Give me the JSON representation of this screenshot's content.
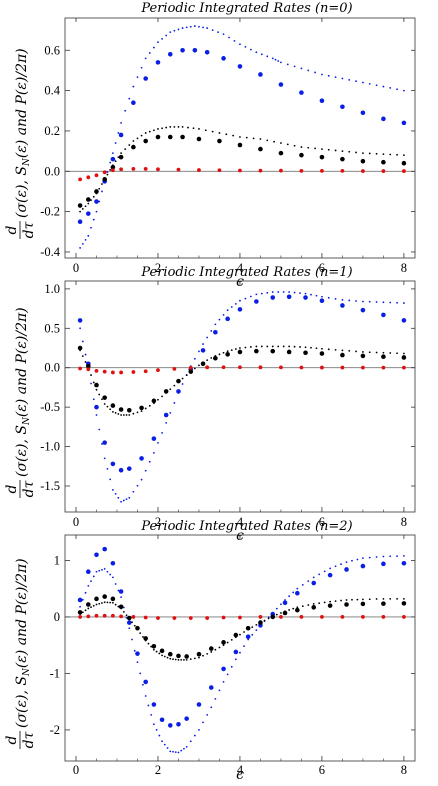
{
  "colors": {
    "blue": "#0a1ee6",
    "black": "#000000",
    "red": "#e01010",
    "frame": "#333333"
  },
  "ylabel": "d/dτ (σ(ε), S_N(ε) and P(ε)/2π)",
  "ylabel_parts": {
    "frac_num": "d",
    "frac_den": "dτ",
    "body": "(σ(ε), S",
    "sub": "N",
    "tail": "(ε) and P(ε)/2π)"
  },
  "chart_data": [
    {
      "type": "scatter",
      "title": "Periodic Integrated Rates (n=0)",
      "xlabel": "ϵ",
      "xlim": [
        0,
        8.1
      ],
      "ylim": [
        -0.43,
        0.76
      ],
      "xticks": [
        0,
        2,
        4,
        6,
        8
      ],
      "yticks": [
        -0.4,
        -0.2,
        0.0,
        0.2,
        0.4,
        0.6
      ],
      "ytick_labels": [
        "-0.4",
        "-0.2",
        "0.0",
        "0.2",
        "0.4",
        "0.6"
      ],
      "series": [
        {
          "style": "blue-big",
          "x": [
            0.1,
            0.3,
            0.5,
            0.7,
            0.9,
            1.1,
            1.4,
            1.7,
            2.0,
            2.3,
            2.6,
            2.9,
            3.2,
            3.6,
            4.0,
            4.5,
            5.0,
            5.5,
            6.0,
            6.5,
            7.0,
            7.5,
            8.0
          ],
          "y": [
            -0.25,
            -0.21,
            -0.15,
            -0.05,
            0.06,
            0.18,
            0.34,
            0.46,
            0.54,
            0.58,
            0.6,
            0.6,
            0.59,
            0.56,
            0.52,
            0.48,
            0.43,
            0.39,
            0.35,
            0.32,
            0.29,
            0.26,
            0.24
          ]
        },
        {
          "style": "blue-small",
          "x": [
            0.1,
            0.3,
            0.5,
            0.7,
            0.9,
            1.1,
            1.4,
            1.7,
            2.0,
            2.3,
            2.6,
            2.9,
            3.2,
            3.6,
            4.0,
            4.4,
            4.8,
            5.0,
            5.5,
            6.0,
            6.5,
            7.0,
            7.5,
            8.0
          ],
          "y": [
            -0.38,
            -0.32,
            -0.2,
            -0.05,
            0.09,
            0.24,
            0.42,
            0.56,
            0.64,
            0.69,
            0.71,
            0.72,
            0.71,
            0.68,
            0.63,
            0.59,
            0.56,
            0.54,
            0.51,
            0.48,
            0.46,
            0.44,
            0.42,
            0.4
          ]
        },
        {
          "style": "black-big",
          "x": [
            0.1,
            0.3,
            0.5,
            0.7,
            0.9,
            1.1,
            1.4,
            1.7,
            2.0,
            2.3,
            2.6,
            3.0,
            3.5,
            4.0,
            4.5,
            5.0,
            5.5,
            6.0,
            6.5,
            7.0,
            7.5,
            8.0
          ],
          "y": [
            -0.17,
            -0.14,
            -0.1,
            -0.04,
            0.02,
            0.07,
            0.12,
            0.15,
            0.17,
            0.17,
            0.17,
            0.16,
            0.15,
            0.13,
            0.11,
            0.09,
            0.08,
            0.07,
            0.06,
            0.05,
            0.045,
            0.04
          ]
        },
        {
          "style": "black-small",
          "x": [
            0.1,
            0.3,
            0.5,
            0.7,
            0.9,
            1.1,
            1.4,
            1.7,
            2.0,
            2.3,
            2.6,
            3.0,
            3.5,
            4.0,
            4.5,
            5.0,
            5.5,
            6.0,
            6.5,
            7.0,
            7.5,
            8.0
          ],
          "y": [
            -0.2,
            -0.16,
            -0.11,
            -0.04,
            0.03,
            0.09,
            0.15,
            0.19,
            0.21,
            0.22,
            0.22,
            0.21,
            0.19,
            0.17,
            0.16,
            0.14,
            0.12,
            0.11,
            0.1,
            0.09,
            0.085,
            0.08
          ]
        },
        {
          "style": "red",
          "x": [
            0.1,
            0.3,
            0.5,
            0.7,
            0.9,
            1.1,
            1.4,
            1.7,
            2.0,
            2.5,
            3.0,
            3.5,
            4.0,
            4.5,
            5.0,
            5.5,
            6.0,
            6.5,
            7.0,
            7.5,
            8.0
          ],
          "y": [
            -0.04,
            -0.03,
            -0.02,
            -0.005,
            0.005,
            0.01,
            0.012,
            0.012,
            0.01,
            0.008,
            0.006,
            0.005,
            0.004,
            0.003,
            0.003,
            0.002,
            0.002,
            0.002,
            0.001,
            0.001,
            0.001
          ]
        }
      ]
    },
    {
      "type": "scatter",
      "title": "Periodic Integrated Rates (n=1)",
      "xlabel": "ϵ",
      "xlim": [
        0,
        8.1
      ],
      "ylim": [
        -1.83,
        1.1
      ],
      "xticks": [
        0,
        2,
        4,
        6,
        8
      ],
      "yticks": [
        -1.5,
        -1.0,
        -0.5,
        0.0,
        0.5,
        1.0
      ],
      "ytick_labels": [
        "-1.5",
        "-1.0",
        "-0.5",
        "0.0",
        "0.5",
        "1.0"
      ],
      "series": [
        {
          "style": "blue-big",
          "x": [
            0.1,
            0.3,
            0.5,
            0.7,
            0.9,
            1.1,
            1.3,
            1.6,
            1.9,
            2.2,
            2.5,
            2.8,
            3.1,
            3.4,
            3.7,
            4.0,
            4.4,
            4.8,
            5.2,
            5.6,
            6.0,
            6.5,
            7.0,
            7.5,
            8.0
          ],
          "y": [
            0.6,
            0.05,
            -0.5,
            -0.95,
            -1.22,
            -1.3,
            -1.28,
            -1.15,
            -0.9,
            -0.6,
            -0.3,
            -0.02,
            0.22,
            0.45,
            0.62,
            0.74,
            0.84,
            0.89,
            0.9,
            0.89,
            0.85,
            0.79,
            0.73,
            0.67,
            0.6
          ]
        },
        {
          "style": "blue-small",
          "x": [
            0.1,
            0.3,
            0.5,
            0.7,
            0.9,
            1.1,
            1.3,
            1.6,
            1.9,
            2.2,
            2.5,
            2.8,
            3.1,
            3.4,
            3.7,
            4.0,
            4.4,
            4.8,
            5.2,
            5.6,
            6.0,
            6.5,
            7.0,
            7.5,
            8.0
          ],
          "y": [
            0.5,
            0.0,
            -0.6,
            -1.15,
            -1.55,
            -1.7,
            -1.65,
            -1.42,
            -1.08,
            -0.7,
            -0.32,
            0.02,
            0.3,
            0.55,
            0.73,
            0.85,
            0.93,
            0.96,
            0.96,
            0.94,
            0.9,
            0.86,
            0.84,
            0.83,
            0.82
          ]
        },
        {
          "style": "black-big",
          "x": [
            0.1,
            0.3,
            0.5,
            0.7,
            0.9,
            1.1,
            1.3,
            1.6,
            1.9,
            2.2,
            2.5,
            2.8,
            3.1,
            3.4,
            3.7,
            4.0,
            4.4,
            4.8,
            5.2,
            5.6,
            6.0,
            6.5,
            7.0,
            7.5,
            8.0
          ],
          "y": [
            0.25,
            0.02,
            -0.22,
            -0.38,
            -0.48,
            -0.53,
            -0.54,
            -0.51,
            -0.42,
            -0.3,
            -0.17,
            -0.05,
            0.05,
            0.12,
            0.17,
            0.2,
            0.21,
            0.21,
            0.2,
            0.19,
            0.18,
            0.16,
            0.15,
            0.14,
            0.13
          ]
        },
        {
          "style": "black-small",
          "x": [
            0.1,
            0.3,
            0.5,
            0.7,
            0.9,
            1.1,
            1.3,
            1.6,
            1.9,
            2.2,
            2.5,
            2.8,
            3.1,
            3.4,
            3.7,
            4.0,
            4.4,
            4.8,
            5.2,
            5.6,
            6.0,
            6.5,
            7.0,
            7.5,
            8.0
          ],
          "y": [
            0.22,
            0.0,
            -0.28,
            -0.46,
            -0.56,
            -0.6,
            -0.6,
            -0.55,
            -0.45,
            -0.32,
            -0.18,
            -0.05,
            0.07,
            0.15,
            0.21,
            0.25,
            0.27,
            0.27,
            0.27,
            0.26,
            0.24,
            0.22,
            0.2,
            0.19,
            0.18
          ]
        },
        {
          "style": "red",
          "x": [
            0.1,
            0.3,
            0.5,
            0.7,
            0.9,
            1.1,
            1.4,
            1.7,
            2.0,
            2.4,
            2.8,
            3.2,
            3.6,
            4.0,
            4.5,
            5.0,
            5.5,
            6.0,
            6.5,
            7.0,
            7.5,
            8.0
          ],
          "y": [
            -0.01,
            -0.02,
            -0.04,
            -0.05,
            -0.06,
            -0.06,
            -0.055,
            -0.045,
            -0.03,
            -0.015,
            0.0,
            0.005,
            0.006,
            0.006,
            0.005,
            0.004,
            0.003,
            0.002,
            0.002,
            0.001,
            0.001,
            0.001
          ]
        }
      ]
    },
    {
      "type": "scatter",
      "title": "Periodic Integrated Rates (n=2)",
      "xlabel": "ϵ",
      "xlim": [
        0,
        8.1
      ],
      "ylim": [
        -2.55,
        1.45
      ],
      "xticks": [
        0,
        2,
        4,
        6,
        8
      ],
      "yticks": [
        -2,
        -1,
        0,
        1
      ],
      "ytick_labels": [
        "-2",
        "-1",
        "0",
        "1"
      ],
      "series": [
        {
          "style": "blue-big",
          "x": [
            0.1,
            0.3,
            0.5,
            0.7,
            0.9,
            1.1,
            1.3,
            1.5,
            1.7,
            1.9,
            2.1,
            2.3,
            2.5,
            2.7,
            3.0,
            3.3,
            3.6,
            3.9,
            4.2,
            4.5,
            4.8,
            5.1,
            5.4,
            5.8,
            6.2,
            6.6,
            7.0,
            7.5,
            8.0
          ],
          "y": [
            0.3,
            0.8,
            1.1,
            1.2,
            0.95,
            0.45,
            -0.1,
            -0.65,
            -1.15,
            -1.55,
            -1.82,
            -1.92,
            -1.9,
            -1.8,
            -1.55,
            -1.25,
            -0.92,
            -0.62,
            -0.35,
            -0.15,
            0.05,
            0.25,
            0.42,
            0.6,
            0.74,
            0.84,
            0.9,
            0.94,
            0.95
          ]
        },
        {
          "style": "blue-small",
          "x": [
            0.1,
            0.3,
            0.5,
            0.7,
            0.9,
            1.1,
            1.3,
            1.5,
            1.7,
            1.9,
            2.1,
            2.3,
            2.5,
            2.7,
            3.0,
            3.3,
            3.6,
            3.9,
            4.2,
            4.5,
            4.8,
            5.1,
            5.4,
            5.8,
            6.2,
            6.6,
            7.0,
            7.5,
            8.0
          ],
          "y": [
            0.18,
            0.55,
            0.8,
            0.85,
            0.7,
            0.35,
            -0.2,
            -0.8,
            -1.4,
            -1.9,
            -2.2,
            -2.38,
            -2.4,
            -2.3,
            -2.0,
            -1.6,
            -1.15,
            -0.75,
            -0.4,
            -0.15,
            0.07,
            0.3,
            0.5,
            0.7,
            0.86,
            0.97,
            1.04,
            1.07,
            1.08
          ]
        },
        {
          "style": "black-big",
          "x": [
            0.1,
            0.3,
            0.5,
            0.7,
            0.9,
            1.1,
            1.3,
            1.5,
            1.7,
            1.9,
            2.1,
            2.3,
            2.5,
            2.7,
            3.0,
            3.3,
            3.6,
            3.9,
            4.2,
            4.5,
            4.8,
            5.1,
            5.4,
            5.8,
            6.2,
            6.6,
            7.0,
            7.5,
            8.0
          ],
          "y": [
            0.08,
            0.22,
            0.32,
            0.36,
            0.32,
            0.18,
            -0.02,
            -0.2,
            -0.38,
            -0.52,
            -0.6,
            -0.66,
            -0.69,
            -0.7,
            -0.66,
            -0.56,
            -0.45,
            -0.32,
            -0.2,
            -0.1,
            0.0,
            0.07,
            0.12,
            0.17,
            0.2,
            0.22,
            0.23,
            0.235,
            0.24
          ]
        },
        {
          "style": "black-small",
          "x": [
            0.1,
            0.3,
            0.5,
            0.7,
            0.9,
            1.1,
            1.3,
            1.5,
            1.7,
            1.9,
            2.1,
            2.3,
            2.5,
            2.7,
            3.0,
            3.3,
            3.6,
            3.9,
            4.2,
            4.5,
            4.8,
            5.1,
            5.4,
            5.8,
            6.2,
            6.6,
            7.0,
            7.5,
            8.0
          ],
          "y": [
            0.05,
            0.15,
            0.22,
            0.26,
            0.25,
            0.15,
            -0.03,
            -0.22,
            -0.42,
            -0.58,
            -0.68,
            -0.74,
            -0.76,
            -0.76,
            -0.72,
            -0.62,
            -0.5,
            -0.36,
            -0.22,
            -0.1,
            0.01,
            0.1,
            0.17,
            0.23,
            0.27,
            0.3,
            0.31,
            0.32,
            0.32
          ]
        },
        {
          "style": "red",
          "x": [
            0.1,
            0.3,
            0.5,
            0.7,
            0.9,
            1.1,
            1.4,
            1.7,
            2.0,
            2.4,
            2.8,
            3.2,
            3.6,
            4.0,
            4.5,
            5.0,
            5.5,
            6.0,
            6.5,
            7.0,
            7.5,
            8.0
          ],
          "y": [
            0.0,
            0.01,
            0.02,
            0.02,
            0.02,
            0.01,
            0.0,
            -0.01,
            -0.02,
            -0.02,
            -0.02,
            -0.02,
            -0.01,
            -0.01,
            0.0,
            0.0,
            0.0,
            0.0,
            0.0,
            0.0,
            0.0,
            0.0
          ]
        }
      ]
    }
  ]
}
